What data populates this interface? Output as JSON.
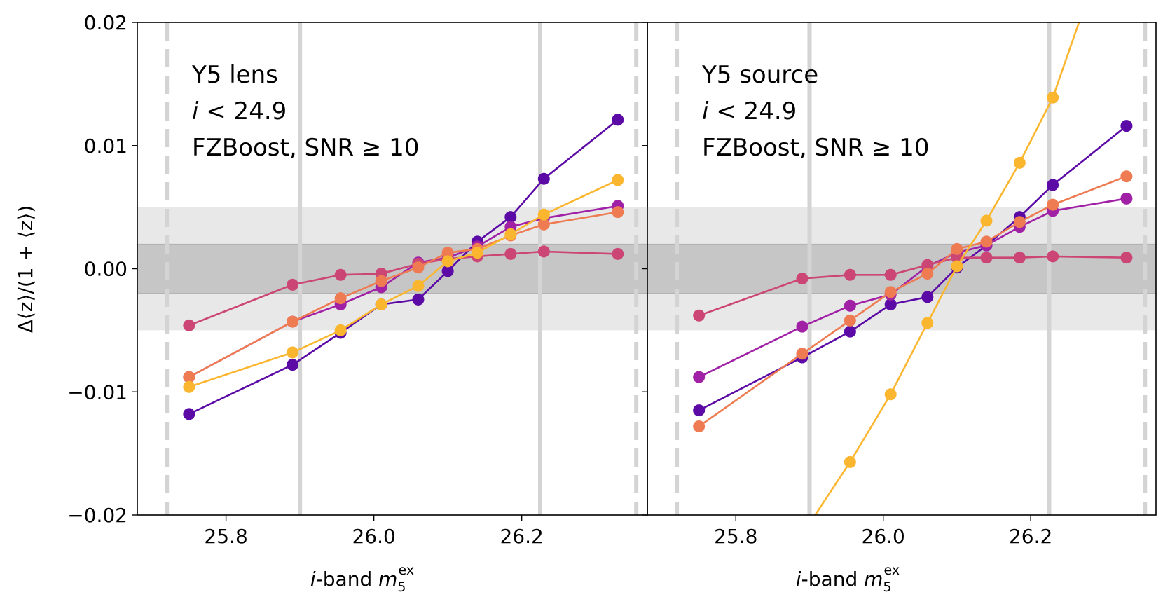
{
  "figure": {
    "ylabel": "Δ⟨z⟩/(1 + ⟨z⟩)",
    "xlabel": {
      "italic_prefix": "i",
      "text": "-band ",
      "var": "m",
      "sub": "5",
      "sup": "ex"
    }
  },
  "colors": {
    "bands_outer": "#e8e8e8",
    "bands_inner": "#c6c6c6",
    "reflines": "#d4d4d4",
    "series": [
      "#5b0aa6",
      "#a020a6",
      "#cc4675",
      "#ee7b52",
      "#fbb630"
    ]
  },
  "chart_data": [
    {
      "type": "line",
      "annotation": {
        "line1": "Y5 lens",
        "line2_italic": "i",
        "line2_rest": " < 24.9",
        "line3": "FZBoost, SNR ≥ 10"
      },
      "xlim": [
        25.68,
        26.37
      ],
      "ylim": [
        -0.02,
        0.02
      ],
      "xticks": [
        "25.8",
        "26.0",
        "26.2"
      ],
      "xtick_values": [
        25.8,
        26.0,
        26.2
      ],
      "yticks": [
        "−0.02",
        "−0.01",
        "0.00",
        "0.01",
        "0.02"
      ],
      "ytick_values": [
        -0.02,
        -0.01,
        0.0,
        0.01,
        0.02
      ],
      "band_inner": [
        -0.002,
        0.002
      ],
      "band_outer": [
        -0.005,
        0.005
      ],
      "vlines_solid": [
        25.9,
        26.225
      ],
      "vlines_dashed": [
        25.72,
        26.355
      ],
      "series": [
        {
          "x": [
            25.75,
            25.89,
            25.955,
            26.01,
            26.06,
            26.1,
            26.14,
            26.185,
            26.23,
            26.33
          ],
          "y": [
            -0.0118,
            -0.0078,
            -0.0052,
            -0.0029,
            -0.0025,
            -0.0002,
            0.0022,
            0.0042,
            0.0073,
            0.0121
          ]
        },
        {
          "x": [
            25.75,
            25.89,
            25.955,
            26.01,
            26.06,
            26.1,
            26.14,
            26.185,
            26.23,
            26.33
          ],
          "y": [
            -0.0088,
            -0.0043,
            -0.0029,
            -0.0015,
            0.0005,
            0.0009,
            0.0018,
            0.0034,
            0.0041,
            0.0051
          ]
        },
        {
          "x": [
            25.75,
            25.89,
            25.955,
            26.01,
            26.06,
            26.1,
            26.14,
            26.185,
            26.23,
            26.33
          ],
          "y": [
            -0.0046,
            -0.0013,
            -0.0005,
            -0.0004,
            0.0004,
            0.0008,
            0.001,
            0.0012,
            0.0014,
            0.0012
          ]
        },
        {
          "x": [
            25.75,
            25.89,
            25.955,
            26.01,
            26.06,
            26.1,
            26.14,
            26.185,
            26.23,
            26.33
          ],
          "y": [
            -0.0088,
            -0.0043,
            -0.0024,
            -0.001,
            0.0001,
            0.0013,
            0.0016,
            0.0027,
            0.0036,
            0.0046
          ]
        },
        {
          "x": [
            25.75,
            25.89,
            25.955,
            26.01,
            26.06,
            26.1,
            26.14,
            26.185,
            26.23,
            26.33
          ],
          "y": [
            -0.0096,
            -0.0068,
            -0.005,
            -0.0029,
            -0.0014,
            0.0006,
            0.0013,
            0.0028,
            0.0044,
            0.0072
          ]
        }
      ]
    },
    {
      "type": "line",
      "annotation": {
        "line1": "Y5 source",
        "line2_italic": "i",
        "line2_rest": " < 24.9",
        "line3": "FZBoost, SNR ≥ 10"
      },
      "xlim": [
        25.68,
        26.37
      ],
      "ylim": [
        -0.02,
        0.02
      ],
      "xticks": [
        "25.8",
        "26.0",
        "26.2"
      ],
      "xtick_values": [
        25.8,
        26.0,
        26.2
      ],
      "yticks": [],
      "ytick_values": [
        -0.02,
        -0.01,
        0.0,
        0.01,
        0.02
      ],
      "band_inner": [
        -0.002,
        0.002
      ],
      "band_outer": [
        -0.005,
        0.005
      ],
      "vlines_solid": [
        25.9,
        26.225
      ],
      "vlines_dashed": [
        25.72,
        26.355
      ],
      "series": [
        {
          "x": [
            25.75,
            25.89,
            25.955,
            26.01,
            26.06,
            26.1,
            26.14,
            26.185,
            26.23,
            26.33
          ],
          "y": [
            -0.0115,
            -0.0072,
            -0.0051,
            -0.0029,
            -0.0023,
            0.0001,
            0.0019,
            0.0042,
            0.0068,
            0.0116
          ]
        },
        {
          "x": [
            25.75,
            25.89,
            25.955,
            26.01,
            26.06,
            26.1,
            26.14,
            26.185,
            26.23,
            26.33
          ],
          "y": [
            -0.0088,
            -0.0047,
            -0.003,
            -0.0021,
            0.0002,
            0.0013,
            0.0019,
            0.0034,
            0.0047,
            0.0057
          ]
        },
        {
          "x": [
            25.75,
            25.89,
            25.955,
            26.01,
            26.06,
            26.1,
            26.14,
            26.185,
            26.23,
            26.33
          ],
          "y": [
            -0.0038,
            -0.0008,
            -0.0005,
            -0.0005,
            0.0003,
            0.0009,
            0.0009,
            0.0009,
            0.001,
            0.0009
          ]
        },
        {
          "x": [
            25.75,
            25.89,
            25.955,
            26.01,
            26.06,
            26.1,
            26.14,
            26.185,
            26.23,
            26.33
          ],
          "y": [
            -0.0128,
            -0.0069,
            -0.0042,
            -0.0019,
            -0.0004,
            0.0016,
            0.0022,
            0.0038,
            0.0052,
            0.0075
          ]
        },
        {
          "x": [
            25.955,
            26.01,
            26.06,
            26.1,
            26.14,
            26.185,
            26.23
          ],
          "y": [
            -0.0157,
            -0.0102,
            -0.0044,
            0.0002,
            0.0039,
            0.0086,
            0.0139
          ],
          "line_x": [
            25.88,
            25.955,
            26.01,
            26.06,
            26.1,
            26.14,
            26.185,
            26.23,
            26.28
          ],
          "line_y": [
            -0.0225,
            -0.0157,
            -0.0102,
            -0.0044,
            0.0002,
            0.0039,
            0.0086,
            0.0139,
            0.0225
          ]
        }
      ]
    }
  ]
}
